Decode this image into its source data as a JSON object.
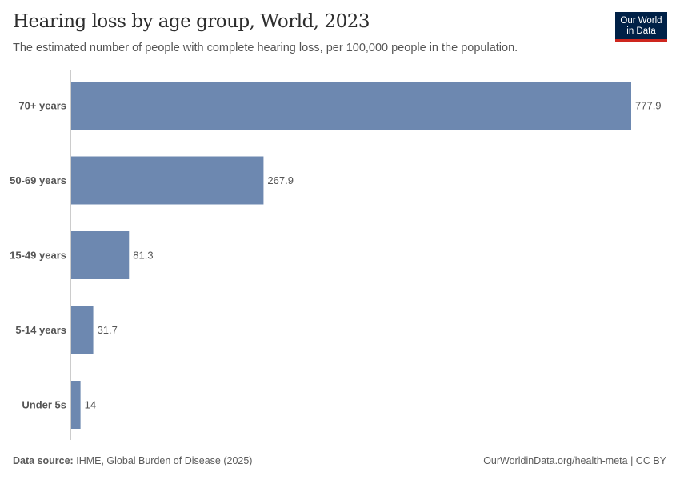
{
  "header": {
    "title": "Hearing loss by age group, World, 2023",
    "subtitle": "The estimated number of people with complete hearing loss, per 100,000 people in the population.",
    "logo": "Our World in Data"
  },
  "footer": {
    "source_label": "Data source:",
    "source_text": "IHME, Global Burden of Disease (2025)",
    "link": "OurWorldinData.org/health-meta | CC BY"
  },
  "chart_data": {
    "type": "bar",
    "orientation": "horizontal",
    "title": "Hearing loss by age group, World, 2023",
    "subtitle": "The estimated number of people with complete hearing loss, per 100,000 people in the population.",
    "categories": [
      "70+ years",
      "50-69 years",
      "15-49 years",
      "5-14 years",
      "Under 5s"
    ],
    "values": [
      777.9,
      267.9,
      81.3,
      31.7,
      14
    ],
    "value_labels": [
      "777.9",
      "267.9",
      "81.3",
      "31.7",
      "14"
    ],
    "bar_color": "#6d88b0",
    "grid": false,
    "xlim": [
      0,
      777.9
    ]
  }
}
